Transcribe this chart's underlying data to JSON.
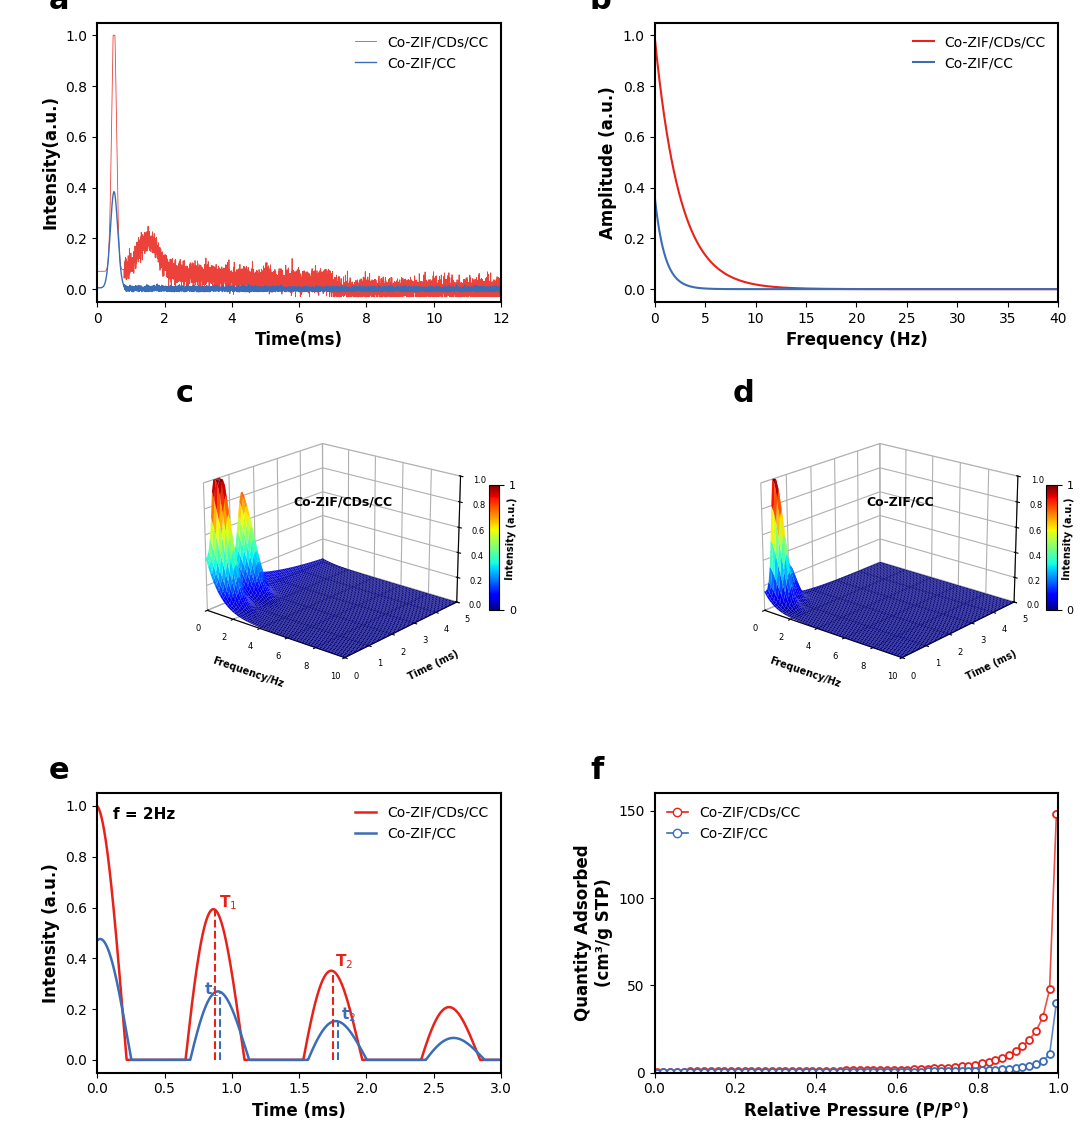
{
  "red_color": "#e8221a",
  "blue_color": "#3a6db5",
  "label_red": "Co-ZIF/CDs/CC",
  "label_blue": "Co-ZIF/CC",
  "panel_labels": [
    "a",
    "b",
    "c",
    "d",
    "e",
    "f"
  ],
  "panel_label_fontsize": 22,
  "axis_label_fontsize": 12,
  "tick_fontsize": 10,
  "legend_fontsize": 10,
  "a_ylabel": "Intensity(a.u.)",
  "a_xlabel": "Time(ms)",
  "a_xlim": [
    0,
    12
  ],
  "a_ylim": [
    -0.05,
    1.05
  ],
  "a_xticks": [
    0,
    2,
    4,
    6,
    8,
    10,
    12
  ],
  "a_yticks": [
    0.0,
    0.2,
    0.4,
    0.6,
    0.8,
    1.0
  ],
  "b_ylabel": "Amplitude (a.u.)",
  "b_xlabel": "Frequency (Hz)",
  "b_xlim": [
    0,
    40
  ],
  "b_ylim": [
    -0.05,
    1.05
  ],
  "b_xticks": [
    0,
    5,
    10,
    15,
    20,
    25,
    30,
    35,
    40
  ],
  "b_yticks": [
    0.0,
    0.2,
    0.4,
    0.6,
    0.8,
    1.0
  ],
  "e_ylabel": "Intensity (a.u.)",
  "e_xlabel": "Time (ms)",
  "e_xlim": [
    0,
    3.0
  ],
  "e_ylim": [
    -0.05,
    1.05
  ],
  "e_xticks": [
    0.0,
    0.5,
    1.0,
    1.5,
    2.0,
    2.5,
    3.0
  ],
  "e_yticks": [
    0.0,
    0.2,
    0.4,
    0.6,
    0.8,
    1.0
  ],
  "e_annotation": "f = 2Hz",
  "f_ylabel": "Quantity Adsorbed\n(cm³/g STP)",
  "f_xlabel": "Relative Pressure (P/P°)",
  "f_xlim": [
    0,
    1.0
  ],
  "f_ylim": [
    0,
    160
  ],
  "f_xticks": [
    0.0,
    0.2,
    0.4,
    0.6,
    0.8,
    1.0
  ],
  "f_yticks": [
    0,
    50,
    100,
    150
  ],
  "c_title": "Co-ZIF/CDs/CC",
  "d_title": "Co-ZIF/CC"
}
